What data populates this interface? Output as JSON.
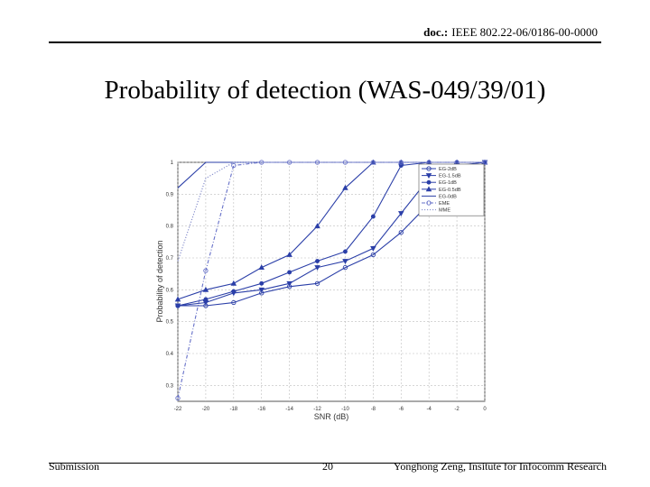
{
  "header": {
    "doc_label": "doc.:",
    "doc_number": "IEEE 802.22-06/0186-00-0000"
  },
  "slide": {
    "title": "Probability of detection (WAS-049/39/01)"
  },
  "footer": {
    "left": "Submission",
    "page": "20",
    "right": "Yonghong Zeng, Insitute for Infocomm Research"
  },
  "chart_data": {
    "type": "line",
    "xlabel": "SNR (dB)",
    "ylabel": "Probability of detection",
    "x": [
      -22,
      -20,
      -18,
      -16,
      -14,
      -12,
      -10,
      -8,
      -6,
      -4,
      -2,
      0
    ],
    "xlim": [
      -22,
      0
    ],
    "ylim": [
      0.25,
      1.0
    ],
    "x_ticks": [
      -22,
      -20,
      -18,
      -16,
      -14,
      -12,
      -10,
      -8,
      -6,
      -4,
      -2,
      0
    ],
    "x_tick_labels": [
      "-22",
      "-20",
      "-18",
      "-16",
      "-14",
      "-12",
      "-10",
      "-8",
      "-6",
      "-4",
      "-2",
      "0"
    ],
    "y_ticks": [
      0.3,
      0.4,
      0.5,
      0.6,
      0.7,
      0.8,
      0.9,
      1
    ],
    "y_tick_labels": [
      "0.3",
      "0.4",
      "0.5",
      "0.6",
      "0.7",
      "0.8",
      "0.9",
      "1"
    ],
    "grid": true,
    "legend_position": "top-right",
    "series": [
      {
        "name": "EG-2dB",
        "marker": "circle",
        "dash": "solid",
        "color": "#2b3fa8",
        "values": [
          0.55,
          0.55,
          0.56,
          0.59,
          0.61,
          0.62,
          0.67,
          0.71,
          0.78,
          0.87,
          0.95,
          1.0
        ]
      },
      {
        "name": "EG-1.5dB",
        "marker": "triangle-down",
        "dash": "solid",
        "color": "#2b3fa8",
        "values": [
          0.55,
          0.56,
          0.59,
          0.6,
          0.62,
          0.67,
          0.69,
          0.73,
          0.84,
          0.95,
          0.99,
          1.0
        ]
      },
      {
        "name": "EG-1dB",
        "marker": "dot",
        "dash": "solid",
        "color": "#2b3fa8",
        "values": [
          0.55,
          0.57,
          0.595,
          0.62,
          0.655,
          0.69,
          0.72,
          0.83,
          0.99,
          1.0,
          1.0,
          1.0
        ]
      },
      {
        "name": "EG-0.5dB",
        "marker": "triangle-up",
        "dash": "solid",
        "color": "#2b3fa8",
        "values": [
          0.57,
          0.6,
          0.62,
          0.67,
          0.71,
          0.8,
          0.92,
          1.0,
          1.0,
          1.0,
          1.0,
          1.0
        ]
      },
      {
        "name": "EG-0dB",
        "marker": "none",
        "dash": "solid",
        "color": "#2b3fa8",
        "values": [
          0.92,
          1.0,
          1.0,
          1.0,
          1.0,
          1.0,
          1.0,
          1.0,
          1.0,
          1.0,
          1.0,
          1.0
        ]
      },
      {
        "name": "EME",
        "marker": "circle",
        "dash": "dashdot",
        "color": "#6670c8",
        "values": [
          0.26,
          0.66,
          0.99,
          1.0,
          1.0,
          1.0,
          1.0,
          1.0,
          1.0,
          1.0,
          1.0,
          1.0
        ]
      },
      {
        "name": "MME",
        "marker": "none",
        "dash": "dotted",
        "color": "#7d86c9",
        "values": [
          0.69,
          0.95,
          1.0,
          1.0,
          1.0,
          1.0,
          1.0,
          1.0,
          1.0,
          1.0,
          1.0,
          1.0
        ]
      }
    ]
  }
}
